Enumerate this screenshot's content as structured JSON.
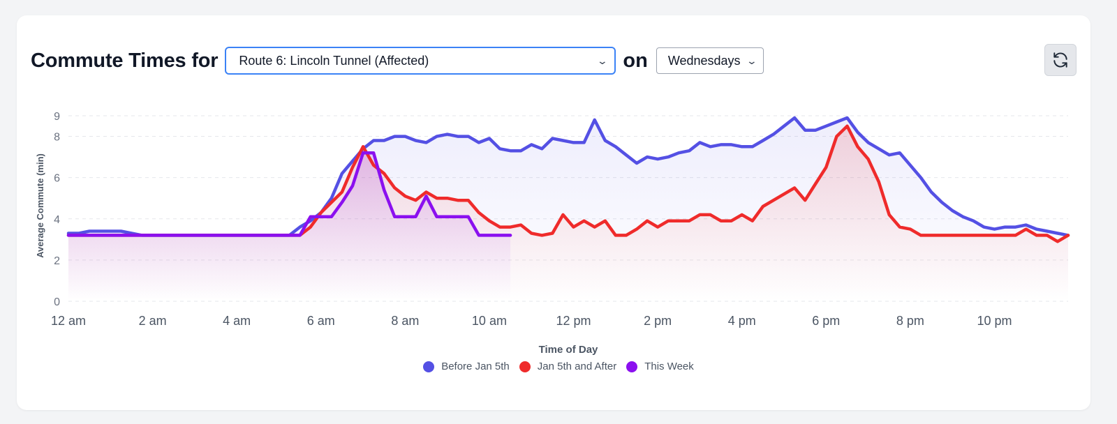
{
  "header": {
    "title_prefix": "Commute Times for",
    "route_selected": "Route 6: Lincoln Tunnel (Affected)",
    "on_text": "on",
    "day_selected": "Wednesdays",
    "refresh_icon": "refresh-icon"
  },
  "colors": {
    "before": "#5450e4",
    "after": "#ef2b2b",
    "this_week": "#8b10ef",
    "grid": "#e5e7eb",
    "axis_text": "#6b7280"
  },
  "chart_data": {
    "type": "line",
    "xlabel": "Time of Day",
    "ylabel": "Average Commute (min)",
    "ylim": [
      0,
      9
    ],
    "yticks": [
      0,
      2,
      4,
      6,
      8,
      9
    ],
    "xlim": [
      0,
      23.75
    ],
    "xticks": [
      {
        "value": 0,
        "label": "12 am"
      },
      {
        "value": 2,
        "label": "2 am"
      },
      {
        "value": 4,
        "label": "4 am"
      },
      {
        "value": 6,
        "label": "6 am"
      },
      {
        "value": 8,
        "label": "8 am"
      },
      {
        "value": 10,
        "label": "10 am"
      },
      {
        "value": 12,
        "label": "12 pm"
      },
      {
        "value": 14,
        "label": "2 pm"
      },
      {
        "value": 16,
        "label": "4 pm"
      },
      {
        "value": 18,
        "label": "6 pm"
      },
      {
        "value": 20,
        "label": "8 pm"
      },
      {
        "value": 22,
        "label": "10 pm"
      }
    ],
    "legend_position": "bottom",
    "grid": true,
    "series": [
      {
        "name": "Before Jan 5th",
        "points": [
          [
            0,
            3.3
          ],
          [
            0.25,
            3.3
          ],
          [
            0.5,
            3.4
          ],
          [
            1.25,
            3.4
          ],
          [
            1.5,
            3.3
          ],
          [
            1.75,
            3.2
          ],
          [
            3,
            3.2
          ],
          [
            4,
            3.2
          ],
          [
            5.25,
            3.2
          ],
          [
            5.5,
            3.6
          ],
          [
            5.75,
            3.9
          ],
          [
            6,
            4.3
          ],
          [
            6.25,
            5
          ],
          [
            6.5,
            6.2
          ],
          [
            6.75,
            6.8
          ],
          [
            7,
            7.4
          ],
          [
            7.25,
            7.8
          ],
          [
            7.5,
            7.8
          ],
          [
            7.75,
            8
          ],
          [
            8,
            8
          ],
          [
            8.25,
            7.8
          ],
          [
            8.5,
            7.7
          ],
          [
            8.75,
            8
          ],
          [
            9,
            8.1
          ],
          [
            9.25,
            8
          ],
          [
            9.5,
            8
          ],
          [
            9.75,
            7.7
          ],
          [
            10,
            7.9
          ],
          [
            10.25,
            7.4
          ],
          [
            10.5,
            7.3
          ],
          [
            10.75,
            7.3
          ],
          [
            11,
            7.6
          ],
          [
            11.25,
            7.4
          ],
          [
            11.5,
            7.9
          ],
          [
            11.75,
            7.8
          ],
          [
            12,
            7.7
          ],
          [
            12.25,
            7.7
          ],
          [
            12.5,
            8.8
          ],
          [
            12.75,
            7.8
          ],
          [
            13,
            7.5
          ],
          [
            13.25,
            7.1
          ],
          [
            13.5,
            6.7
          ],
          [
            13.75,
            7
          ],
          [
            14,
            6.9
          ],
          [
            14.25,
            7
          ],
          [
            14.5,
            7.2
          ],
          [
            14.75,
            7.3
          ],
          [
            15,
            7.7
          ],
          [
            15.25,
            7.5
          ],
          [
            15.5,
            7.6
          ],
          [
            15.75,
            7.6
          ],
          [
            16,
            7.5
          ],
          [
            16.25,
            7.5
          ],
          [
            16.5,
            7.8
          ],
          [
            16.75,
            8.1
          ],
          [
            17,
            8.5
          ],
          [
            17.25,
            8.9
          ],
          [
            17.5,
            8.3
          ],
          [
            17.75,
            8.3
          ],
          [
            18,
            8.5
          ],
          [
            18.25,
            8.7
          ],
          [
            18.5,
            8.9
          ],
          [
            18.75,
            8.2
          ],
          [
            19,
            7.7
          ],
          [
            19.25,
            7.4
          ],
          [
            19.5,
            7.1
          ],
          [
            19.75,
            7.2
          ],
          [
            20,
            6.6
          ],
          [
            20.25,
            6
          ],
          [
            20.5,
            5.3
          ],
          [
            20.75,
            4.8
          ],
          [
            21,
            4.4
          ],
          [
            21.25,
            4.1
          ],
          [
            21.5,
            3.9
          ],
          [
            21.75,
            3.6
          ],
          [
            22,
            3.5
          ],
          [
            22.25,
            3.6
          ],
          [
            22.5,
            3.6
          ],
          [
            22.75,
            3.7
          ],
          [
            23,
            3.5
          ],
          [
            23.25,
            3.4
          ],
          [
            23.5,
            3.3
          ],
          [
            23.75,
            3.2
          ]
        ]
      },
      {
        "name": "Jan 5th and After",
        "points": [
          [
            0,
            3.2
          ],
          [
            5.5,
            3.2
          ],
          [
            5.75,
            3.6
          ],
          [
            6,
            4.3
          ],
          [
            6.25,
            4.8
          ],
          [
            6.5,
            5.3
          ],
          [
            6.75,
            6.5
          ],
          [
            7,
            7.5
          ],
          [
            7.25,
            6.6
          ],
          [
            7.5,
            6.2
          ],
          [
            7.75,
            5.5
          ],
          [
            8,
            5.1
          ],
          [
            8.25,
            4.9
          ],
          [
            8.5,
            5.3
          ],
          [
            8.75,
            5
          ],
          [
            9,
            5
          ],
          [
            9.25,
            4.9
          ],
          [
            9.5,
            4.9
          ],
          [
            9.75,
            4.3
          ],
          [
            10,
            3.9
          ],
          [
            10.25,
            3.6
          ],
          [
            10.5,
            3.6
          ],
          [
            10.75,
            3.7
          ],
          [
            11,
            3.3
          ],
          [
            11.25,
            3.2
          ],
          [
            11.5,
            3.3
          ],
          [
            11.75,
            4.2
          ],
          [
            12,
            3.6
          ],
          [
            12.25,
            3.9
          ],
          [
            12.5,
            3.6
          ],
          [
            12.75,
            3.9
          ],
          [
            13,
            3.2
          ],
          [
            13.25,
            3.2
          ],
          [
            13.5,
            3.5
          ],
          [
            13.75,
            3.9
          ],
          [
            14,
            3.6
          ],
          [
            14.25,
            3.9
          ],
          [
            14.5,
            3.9
          ],
          [
            14.75,
            3.9
          ],
          [
            15,
            4.2
          ],
          [
            15.25,
            4.2
          ],
          [
            15.5,
            3.9
          ],
          [
            15.75,
            3.9
          ],
          [
            16,
            4.2
          ],
          [
            16.25,
            3.9
          ],
          [
            16.5,
            4.6
          ],
          [
            16.75,
            4.9
          ],
          [
            17,
            5.2
          ],
          [
            17.25,
            5.5
          ],
          [
            17.5,
            4.9
          ],
          [
            17.75,
            5.7
          ],
          [
            18,
            6.5
          ],
          [
            18.25,
            8
          ],
          [
            18.5,
            8.5
          ],
          [
            18.75,
            7.5
          ],
          [
            19,
            6.9
          ],
          [
            19.25,
            5.8
          ],
          [
            19.5,
            4.2
          ],
          [
            19.75,
            3.6
          ],
          [
            20,
            3.5
          ],
          [
            20.25,
            3.2
          ],
          [
            21,
            3.2
          ],
          [
            22,
            3.2
          ],
          [
            22.5,
            3.2
          ],
          [
            22.75,
            3.5
          ],
          [
            23,
            3.2
          ],
          [
            23.25,
            3.2
          ],
          [
            23.5,
            2.9
          ],
          [
            23.75,
            3.2
          ]
        ]
      },
      {
        "name": "This Week",
        "points": [
          [
            0,
            3.2
          ],
          [
            5.5,
            3.2
          ],
          [
            5.75,
            4.1
          ],
          [
            6,
            4.1
          ],
          [
            6.25,
            4.1
          ],
          [
            6.5,
            4.8
          ],
          [
            6.75,
            5.6
          ],
          [
            7,
            7.2
          ],
          [
            7.25,
            7.2
          ],
          [
            7.5,
            5.4
          ],
          [
            7.75,
            4.1
          ],
          [
            8,
            4.1
          ],
          [
            8.25,
            4.1
          ],
          [
            8.5,
            5.1
          ],
          [
            8.75,
            4.1
          ],
          [
            9,
            4.1
          ],
          [
            9.25,
            4.1
          ],
          [
            9.5,
            4.1
          ],
          [
            9.75,
            3.2
          ],
          [
            10,
            3.2
          ],
          [
            10.25,
            3.2
          ],
          [
            10.5,
            3.2
          ]
        ]
      }
    ]
  }
}
